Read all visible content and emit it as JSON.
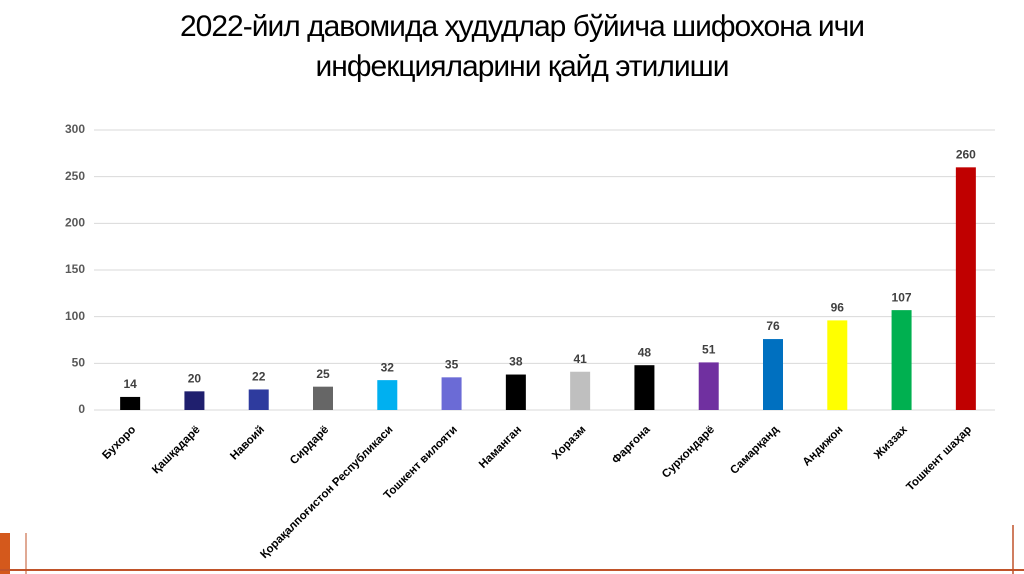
{
  "chart_data": {
    "type": "bar",
    "title": [
      "2022-йил давомида ҳудудлар бўйича шифохона   ичи",
      "инфекцияларини   қайд этилиши"
    ],
    "categories": [
      "Бухоро",
      "Қашқадарё",
      "Навоий",
      "Сирдарё",
      "Қорақалпоғистон Республикаси",
      "Тошкент вилояти",
      "Наманган",
      "Хоразм",
      "Фарғона",
      "Сурхондарё",
      "Самарқанд",
      "Андижон",
      "Жиззах",
      "Тошкент шаҳар"
    ],
    "values": [
      14,
      20,
      22,
      25,
      32,
      35,
      38,
      41,
      48,
      51,
      76,
      96,
      107,
      260
    ],
    "colors": [
      "#000000",
      "#1f1f6e",
      "#2e3b9e",
      "#666666",
      "#00b0f0",
      "#6b6bd6",
      "#000000",
      "#bfbfbf",
      "#000000",
      "#7030a0",
      "#0070c0",
      "#ffff00",
      "#00b050",
      "#c00000"
    ],
    "ylim": [
      0,
      300
    ],
    "yticks": [
      0,
      50,
      100,
      150,
      200,
      250,
      300
    ],
    "grid": true
  }
}
